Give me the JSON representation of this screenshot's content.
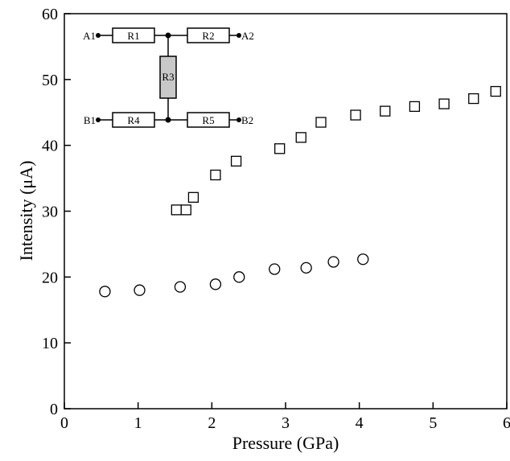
{
  "chart_data": {
    "type": "scatter",
    "xlabel": "Pressure (GPa)",
    "ylabel": "Intensity (μA)",
    "xlim": [
      0,
      6
    ],
    "ylim": [
      0,
      60
    ],
    "xticks": [
      0,
      1,
      2,
      3,
      4,
      5,
      6
    ],
    "yticks": [
      0,
      10,
      20,
      30,
      40,
      50,
      60
    ],
    "grid": false,
    "series": [
      {
        "marker": "square",
        "x": [
          1.52,
          1.65,
          1.75,
          2.05,
          2.33,
          2.92,
          3.21,
          3.48,
          3.95,
          4.35,
          4.75,
          5.15,
          5.55,
          5.85
        ],
        "y": [
          30.2,
          30.2,
          32.1,
          35.5,
          37.6,
          39.5,
          41.2,
          43.5,
          44.6,
          45.2,
          45.9,
          46.3,
          47.1,
          48.2
        ]
      },
      {
        "marker": "circle",
        "x": [
          0.55,
          1.02,
          1.57,
          2.05,
          2.37,
          2.85,
          3.28,
          3.65,
          4.05
        ],
        "y": [
          17.8,
          18.0,
          18.5,
          18.9,
          20.0,
          21.2,
          21.4,
          22.3,
          22.7
        ]
      }
    ],
    "inset": {
      "type": "circuit",
      "terminals": [
        "A1",
        "A2",
        "B1",
        "B2"
      ],
      "resistors": [
        "R1",
        "R2",
        "R3",
        "R4",
        "R5"
      ]
    }
  }
}
